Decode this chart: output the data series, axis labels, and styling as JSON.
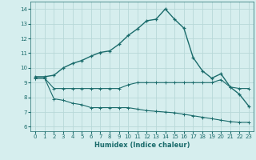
{
  "title": "",
  "xlabel": "Humidex (Indice chaleur)",
  "background_color": "#d6eeee",
  "grid_color": "#b8d8d8",
  "line_color": "#1a6b6b",
  "xlim": [
    -0.5,
    23.5
  ],
  "ylim": [
    5.7,
    14.5
  ],
  "yticks": [
    6,
    7,
    8,
    9,
    10,
    11,
    12,
    13,
    14
  ],
  "xticks": [
    0,
    1,
    2,
    3,
    4,
    5,
    6,
    7,
    8,
    9,
    10,
    11,
    12,
    13,
    14,
    15,
    16,
    17,
    18,
    19,
    20,
    21,
    22,
    23
  ],
  "line1_x": [
    0,
    1,
    2,
    3,
    4,
    5,
    6,
    7,
    8,
    9,
    10,
    11,
    12,
    13,
    14,
    15,
    16,
    17,
    18,
    19,
    20,
    21,
    22,
    23
  ],
  "line1_y": [
    9.4,
    9.4,
    9.5,
    10.0,
    10.3,
    10.5,
    10.8,
    11.05,
    11.15,
    11.6,
    12.2,
    12.65,
    13.2,
    13.3,
    14.0,
    13.3,
    12.7,
    10.7,
    9.8,
    9.3,
    9.6,
    8.7,
    8.2,
    7.4
  ],
  "line2_x": [
    0,
    1,
    2,
    3,
    4,
    5,
    6,
    7,
    8,
    9,
    10,
    11,
    12,
    13,
    14,
    15,
    16,
    17,
    18,
    19,
    20,
    21,
    22,
    23
  ],
  "line2_y": [
    9.3,
    9.3,
    8.6,
    8.6,
    8.6,
    8.6,
    8.6,
    8.6,
    8.6,
    8.6,
    8.85,
    9.0,
    9.0,
    9.0,
    9.0,
    9.0,
    9.0,
    9.0,
    9.0,
    9.0,
    9.2,
    8.7,
    8.6,
    8.6
  ],
  "line3_x": [
    0,
    1,
    2,
    3,
    4,
    5,
    6,
    7,
    8,
    9,
    10,
    11,
    12,
    13,
    14,
    15,
    16,
    17,
    18,
    19,
    20,
    21,
    22,
    23
  ],
  "line3_y": [
    9.3,
    9.3,
    7.9,
    7.8,
    7.6,
    7.5,
    7.3,
    7.3,
    7.3,
    7.3,
    7.3,
    7.2,
    7.1,
    7.05,
    7.0,
    6.95,
    6.85,
    6.75,
    6.65,
    6.55,
    6.45,
    6.35,
    6.3,
    6.3
  ]
}
